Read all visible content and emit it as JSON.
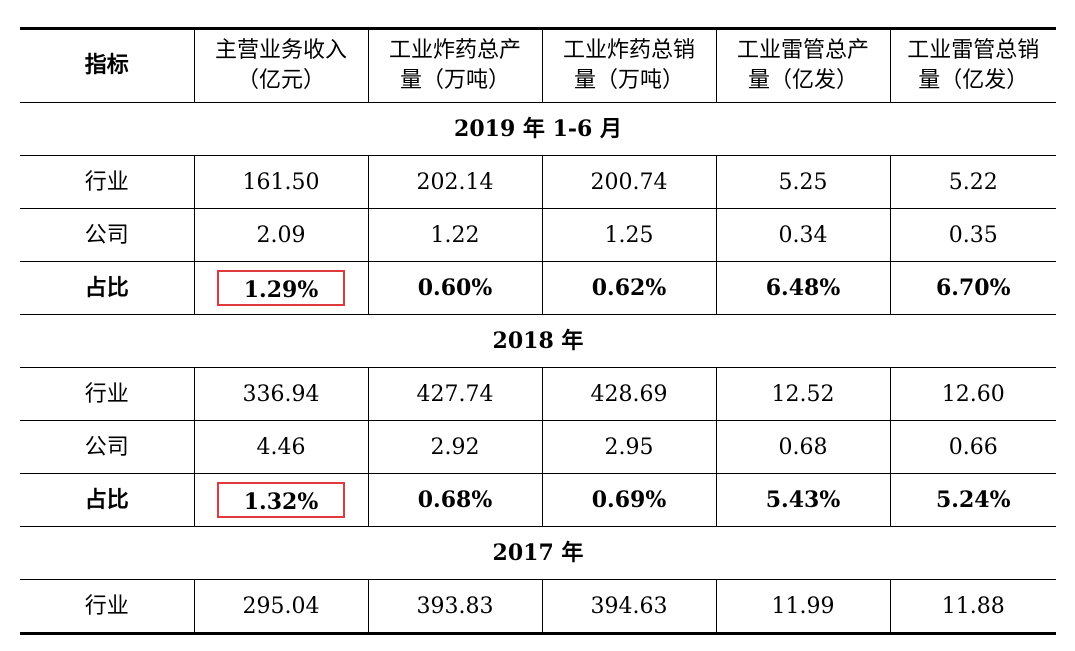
{
  "headers": [
    "指标",
    "主营业务收入（亿元）",
    "工业炸药总产量（万吨）",
    "工业炸药总销量（万吨）",
    "工业雷管总产量（亿发）",
    "工业雷管总销量（亿发）"
  ],
  "header_lines": [
    [
      "指标"
    ],
    [
      "主营业务收入",
      "（亿元）"
    ],
    [
      "工业炸药总产",
      "量（万吨）"
    ],
    [
      "工业炸药总销",
      "量（万吨）"
    ],
    [
      "工业雷管总产",
      "量（亿发）"
    ],
    [
      "工业雷管总销",
      "量（亿发）"
    ]
  ],
  "sections": [
    {
      "title": "2019 年 1-6 月",
      "rows": [
        {
          "label": "行业",
          "values": [
            "161.50",
            "202.14",
            "200.74",
            "5.25",
            "5.22"
          ]
        },
        {
          "label": "公司",
          "values": [
            "2.09",
            "1.22",
            "1.25",
            "0.34",
            "0.35"
          ]
        },
        {
          "label": "占比",
          "values": [
            "1.29%",
            "0.60%",
            "0.62%",
            "6.48%",
            "6.70%"
          ],
          "highlight_first": true
        }
      ]
    },
    {
      "title": "2018 年",
      "rows": [
        {
          "label": "行业",
          "values": [
            "336.94",
            "427.74",
            "428.69",
            "12.52",
            "12.60"
          ]
        },
        {
          "label": "公司",
          "values": [
            "4.46",
            "2.92",
            "2.95",
            "0.68",
            "0.66"
          ]
        },
        {
          "label": "占比",
          "values": [
            "1.32%",
            "0.68%",
            "0.69%",
            "5.43%",
            "5.24%"
          ],
          "highlight_first": true
        }
      ]
    },
    {
      "title": "2017 年",
      "rows": [
        {
          "label": "行业",
          "values": [
            "295.04",
            "393.83",
            "394.63",
            "11.99",
            "11.88"
          ]
        }
      ]
    }
  ],
  "colors": {
    "highlight_border": "#e0393e",
    "rule": "#000000"
  }
}
